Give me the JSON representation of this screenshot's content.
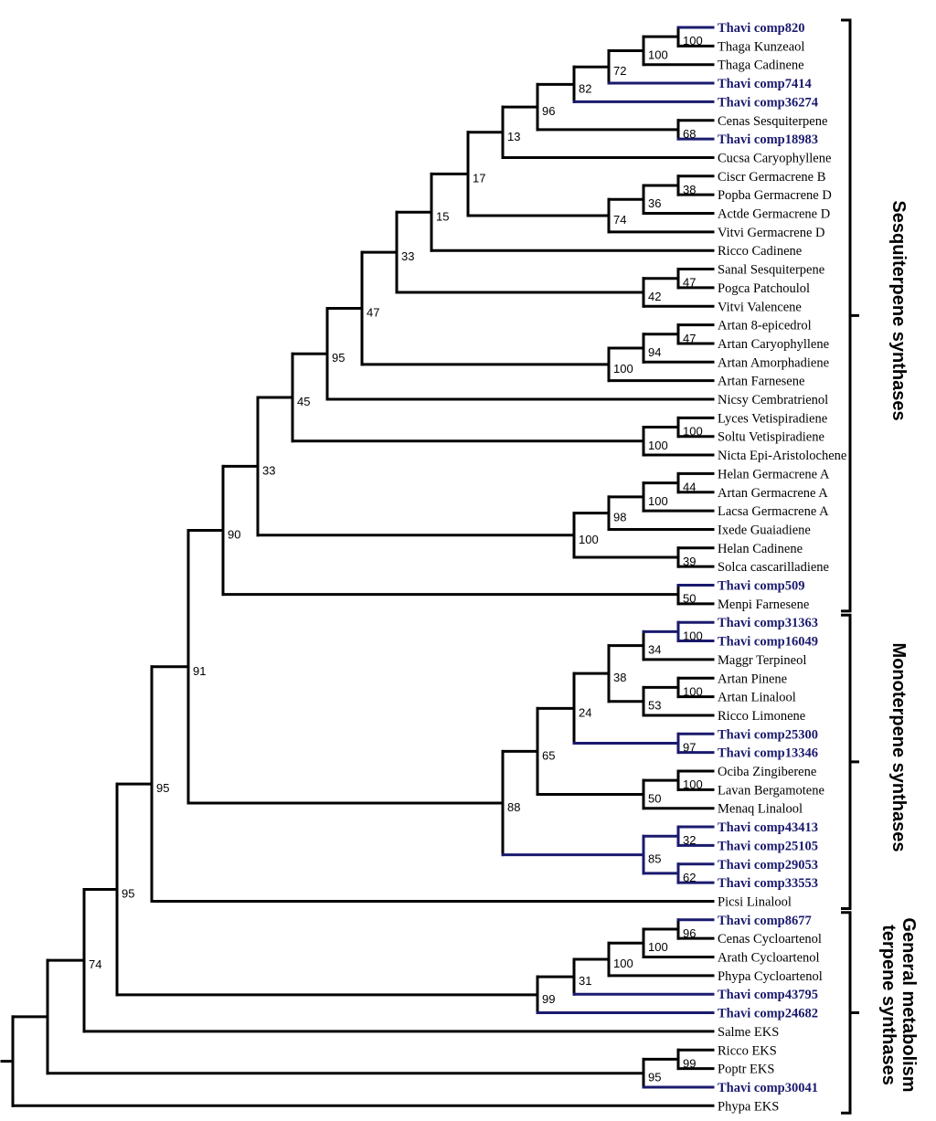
{
  "tree": {
    "leaves": [
      {
        "id": 0,
        "label": "Thavi comp820",
        "highlight": true
      },
      {
        "id": 1,
        "label": "Thaga Kunzeaol",
        "highlight": false
      },
      {
        "id": 2,
        "label": "Thaga Cadinene",
        "highlight": false
      },
      {
        "id": 3,
        "label": "Thavi comp7414",
        "highlight": true
      },
      {
        "id": 4,
        "label": "Thavi comp36274",
        "highlight": true
      },
      {
        "id": 5,
        "label": "Cenas Sesquiterpene",
        "highlight": false
      },
      {
        "id": 6,
        "label": "Thavi comp18983",
        "highlight": true
      },
      {
        "id": 7,
        "label": "Cucsa Caryophyllene",
        "highlight": false
      },
      {
        "id": 8,
        "label": "Ciscr Germacrene B",
        "highlight": false
      },
      {
        "id": 9,
        "label": "Popba Germacrene D",
        "highlight": false
      },
      {
        "id": 10,
        "label": "Actde Germacrene D",
        "highlight": false
      },
      {
        "id": 11,
        "label": "Vitvi Germacrene D",
        "highlight": false
      },
      {
        "id": 12,
        "label": "Ricco Cadinene",
        "highlight": false
      },
      {
        "id": 13,
        "label": "Sanal Sesquiterpene",
        "highlight": false
      },
      {
        "id": 14,
        "label": "Pogca Patchoulol",
        "highlight": false
      },
      {
        "id": 15,
        "label": "Vitvi Valencene",
        "highlight": false
      },
      {
        "id": 16,
        "label": "Artan 8-epicedrol",
        "highlight": false
      },
      {
        "id": 17,
        "label": "Artan Caryophyllene",
        "highlight": false
      },
      {
        "id": 18,
        "label": "Artan Amorphadiene",
        "highlight": false
      },
      {
        "id": 19,
        "label": "Artan Farnesene",
        "highlight": false
      },
      {
        "id": 20,
        "label": "Nicsy Cembratrienol",
        "highlight": false
      },
      {
        "id": 21,
        "label": "Lyces Vetispiradiene",
        "highlight": false
      },
      {
        "id": 22,
        "label": "Soltu Vetispiradiene",
        "highlight": false
      },
      {
        "id": 23,
        "label": "Nicta Epi-Aristolochene",
        "highlight": false
      },
      {
        "id": 24,
        "label": "Helan Germacrene A",
        "highlight": false
      },
      {
        "id": 25,
        "label": "Artan Germacrene A",
        "highlight": false
      },
      {
        "id": 26,
        "label": "Lacsa Germacrene A",
        "highlight": false
      },
      {
        "id": 27,
        "label": "Ixede Guaiadiene",
        "highlight": false
      },
      {
        "id": 28,
        "label": "Helan Cadinene",
        "highlight": false
      },
      {
        "id": 29,
        "label": "Solca cascarilladiene",
        "highlight": false
      },
      {
        "id": 30,
        "label": "Thavi comp509",
        "highlight": true
      },
      {
        "id": 31,
        "label": "Menpi Farnesene",
        "highlight": false
      },
      {
        "id": 32,
        "label": "Thavi comp31363",
        "highlight": true
      },
      {
        "id": 33,
        "label": "Thavi comp16049",
        "highlight": true
      },
      {
        "id": 34,
        "label": "Maggr Terpineol",
        "highlight": false
      },
      {
        "id": 35,
        "label": "Artan Pinene",
        "highlight": false
      },
      {
        "id": 36,
        "label": "Artan Linalool",
        "highlight": false
      },
      {
        "id": 37,
        "label": "Ricco Limonene",
        "highlight": false
      },
      {
        "id": 38,
        "label": "Thavi comp25300",
        "highlight": true
      },
      {
        "id": 39,
        "label": "Thavi comp13346",
        "highlight": true
      },
      {
        "id": 40,
        "label": "Ociba Zingiberene",
        "highlight": false
      },
      {
        "id": 41,
        "label": "Lavan Bergamotene",
        "highlight": false
      },
      {
        "id": 42,
        "label": "Menaq Linalool",
        "highlight": false
      },
      {
        "id": 43,
        "label": "Thavi comp43413",
        "highlight": true
      },
      {
        "id": 44,
        "label": "Thavi comp25105",
        "highlight": true
      },
      {
        "id": 45,
        "label": "Thavi comp29053",
        "highlight": true
      },
      {
        "id": 46,
        "label": "Thavi comp33553",
        "highlight": true
      },
      {
        "id": 47,
        "label": "Picsi Linalool",
        "highlight": false
      },
      {
        "id": 48,
        "label": "Thavi comp8677",
        "highlight": true
      },
      {
        "id": 49,
        "label": "Cenas Cycloartenol",
        "highlight": false
      },
      {
        "id": 50,
        "label": "Arath Cycloartenol",
        "highlight": false
      },
      {
        "id": 51,
        "label": "Phypa Cycloartenol",
        "highlight": false
      },
      {
        "id": 52,
        "label": "Thavi comp43795",
        "highlight": true
      },
      {
        "id": 53,
        "label": "Thavi comp24682",
        "highlight": true
      },
      {
        "id": 54,
        "label": "Salme EKS",
        "highlight": false
      },
      {
        "id": 55,
        "label": "Ricco EKS",
        "highlight": false
      },
      {
        "id": 56,
        "label": "Poptr EKS",
        "highlight": false
      },
      {
        "id": 57,
        "label": "Thavi comp30041",
        "highlight": true
      },
      {
        "id": 58,
        "label": "Phypa EKS",
        "highlight": false
      }
    ],
    "nodes": [
      {
        "id": "n1",
        "children": [
          0,
          1
        ],
        "support": "100"
      },
      {
        "id": "n2",
        "children": [
          "n1",
          2
        ],
        "support": "100"
      },
      {
        "id": "n3",
        "children": [
          "n2",
          3
        ],
        "support": "72"
      },
      {
        "id": "n4",
        "children": [
          "n3",
          4
        ],
        "support": "82"
      },
      {
        "id": "n5",
        "children": [
          5,
          6
        ],
        "support": "68"
      },
      {
        "id": "n6",
        "children": [
          "n4",
          "n5"
        ],
        "support": "96"
      },
      {
        "id": "n7",
        "children": [
          "n6",
          7
        ],
        "support": "13"
      },
      {
        "id": "n8",
        "children": [
          8,
          9
        ],
        "support": "38"
      },
      {
        "id": "n9",
        "children": [
          "n8",
          10
        ],
        "support": "36"
      },
      {
        "id": "n10",
        "children": [
          "n9",
          11
        ],
        "support": "74"
      },
      {
        "id": "n11",
        "children": [
          "n7",
          "n10"
        ],
        "support": "17"
      },
      {
        "id": "n12",
        "children": [
          "n11",
          12
        ],
        "support": "15"
      },
      {
        "id": "n13",
        "children": [
          13,
          14
        ],
        "support": "47"
      },
      {
        "id": "n14",
        "children": [
          "n13",
          15
        ],
        "support": "42"
      },
      {
        "id": "n15",
        "children": [
          "n12",
          "n14"
        ],
        "support": "33"
      },
      {
        "id": "n16",
        "children": [
          16,
          17
        ],
        "support": "47"
      },
      {
        "id": "n17",
        "children": [
          "n16",
          18
        ],
        "support": "94"
      },
      {
        "id": "n18",
        "children": [
          "n17",
          19
        ],
        "support": "100"
      },
      {
        "id": "n19",
        "children": [
          "n15",
          "n18"
        ],
        "support": "47"
      },
      {
        "id": "n20",
        "children": [
          "n19",
          20
        ],
        "support": "95"
      },
      {
        "id": "n21",
        "children": [
          21,
          22
        ],
        "support": "100"
      },
      {
        "id": "n22",
        "children": [
          "n21",
          23
        ],
        "support": "100"
      },
      {
        "id": "n23",
        "children": [
          "n20",
          "n22"
        ],
        "support": "45"
      },
      {
        "id": "n24",
        "children": [
          24,
          25
        ],
        "support": "44"
      },
      {
        "id": "n25",
        "children": [
          "n24",
          26
        ],
        "support": "100"
      },
      {
        "id": "n26",
        "children": [
          "n25",
          27
        ],
        "support": "98"
      },
      {
        "id": "n27",
        "children": [
          28,
          29
        ],
        "support": "39"
      },
      {
        "id": "n28",
        "children": [
          "n26",
          "n27"
        ],
        "support": "100"
      },
      {
        "id": "n29",
        "children": [
          "n23",
          "n28"
        ],
        "support": "33"
      },
      {
        "id": "n30",
        "children": [
          30,
          31
        ],
        "support": "50"
      },
      {
        "id": "n31",
        "children": [
          "n29",
          "n30"
        ],
        "support": "90"
      },
      {
        "id": "n32",
        "children": [
          32,
          33
        ],
        "support": "100"
      },
      {
        "id": "n33",
        "children": [
          "n32",
          34
        ],
        "support": "34"
      },
      {
        "id": "n34",
        "children": [
          35,
          36
        ],
        "support": "100"
      },
      {
        "id": "n35",
        "children": [
          "n34",
          37
        ],
        "support": "53"
      },
      {
        "id": "n36",
        "children": [
          "n33",
          "n35"
        ],
        "support": "38"
      },
      {
        "id": "n37",
        "children": [
          38,
          39
        ],
        "support": "97"
      },
      {
        "id": "n38",
        "children": [
          "n36",
          "n37"
        ],
        "support": "24"
      },
      {
        "id": "n39",
        "children": [
          40,
          41
        ],
        "support": "100"
      },
      {
        "id": "n40",
        "children": [
          "n39",
          42
        ],
        "support": "50"
      },
      {
        "id": "n41",
        "children": [
          "n38",
          "n40"
        ],
        "support": "65"
      },
      {
        "id": "n42",
        "children": [
          43,
          44
        ],
        "support": "32"
      },
      {
        "id": "n43",
        "children": [
          45,
          46
        ],
        "support": "62"
      },
      {
        "id": "n44",
        "children": [
          "n42",
          "n43"
        ],
        "support": "85"
      },
      {
        "id": "n45",
        "children": [
          "n41",
          "n44"
        ],
        "support": "88"
      },
      {
        "id": "n46",
        "children": [
          "n31",
          "n45"
        ],
        "support": "91"
      },
      {
        "id": "n47",
        "children": [
          "n46",
          47
        ],
        "support": "95"
      },
      {
        "id": "n48",
        "children": [
          48,
          49
        ],
        "support": "96"
      },
      {
        "id": "n49",
        "children": [
          "n48",
          50
        ],
        "support": "100"
      },
      {
        "id": "n50",
        "children": [
          "n49",
          51
        ],
        "support": "100"
      },
      {
        "id": "n51",
        "children": [
          "n50",
          52
        ],
        "support": "31"
      },
      {
        "id": "n52",
        "children": [
          "n51",
          53
        ],
        "support": "99"
      },
      {
        "id": "n53",
        "children": [
          "n47",
          "n52"
        ],
        "support": "95"
      },
      {
        "id": "n54",
        "children": [
          "n53",
          54
        ],
        "support": "74"
      },
      {
        "id": "n55",
        "children": [
          55,
          56
        ],
        "support": "99"
      },
      {
        "id": "n56",
        "children": [
          "n55",
          57
        ],
        "support": "95"
      },
      {
        "id": "n57",
        "children": [
          "n54",
          "n56"
        ],
        "support": ""
      },
      {
        "id": "root",
        "children": [
          "n57",
          58
        ],
        "support": ""
      }
    ]
  },
  "groups": [
    {
      "id": "sesq",
      "label": "Sesquiterpene synthases",
      "from": 0,
      "to": 31
    },
    {
      "id": "mono",
      "label": "Monoterpene synthases",
      "from": 32,
      "to": 47
    },
    {
      "id": "general",
      "label_line1": "General metabolism",
      "label_line2": "terpene synthases",
      "from": 48,
      "to": 58
    }
  ],
  "colors": {
    "highlight": "#1a1a6e",
    "normal": "#000000"
  }
}
